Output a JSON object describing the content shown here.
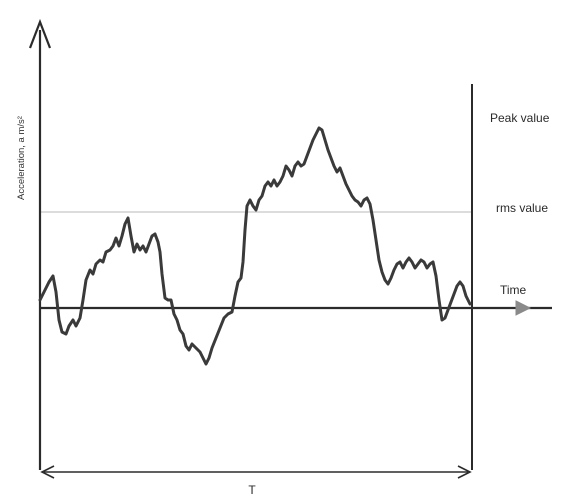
{
  "diagram": {
    "y_axis_label": "Acceleration, a m/s²",
    "x_axis_label": "Time",
    "peak_label": "Peak value",
    "rms_label": "rms value",
    "period_label": "T",
    "colors": {
      "axis": "#2b2b2b",
      "signal": "#3a3a3a",
      "rms_line": "#c8c8c8",
      "arrow_head": "#8a8a8a"
    }
  }
}
